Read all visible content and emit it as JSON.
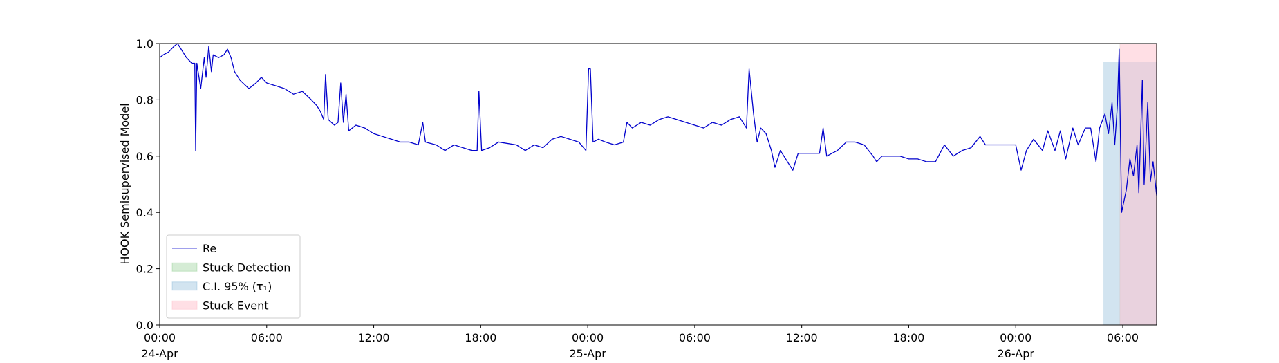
{
  "chart_data": {
    "type": "line",
    "ylabel": "HOOK Semisupervised Model",
    "xlim": [
      "1900-04-24 00:00",
      "1900-04-26 07:54"
    ],
    "xticks": [
      {
        "value": "1900-04-24 00:00",
        "label": "00:00\n24-Apr\n1900"
      },
      {
        "value": "1900-04-24 06:00",
        "label": "06:00"
      },
      {
        "value": "1900-04-24 12:00",
        "label": "12:00"
      },
      {
        "value": "1900-04-24 18:00",
        "label": "18:00"
      },
      {
        "value": "1900-04-25 00:00",
        "label": "00:00\n25-Apr"
      },
      {
        "value": "1900-04-25 06:00",
        "label": "06:00"
      },
      {
        "value": "1900-04-25 12:00",
        "label": "12:00"
      },
      {
        "value": "1900-04-25 18:00",
        "label": "18:00"
      },
      {
        "value": "1900-04-26 00:00",
        "label": "00:00\n26-Apr"
      },
      {
        "value": "1900-04-26 06:00",
        "label": "06:00"
      }
    ],
    "ylim": [
      0,
      1
    ],
    "yticks": [
      {
        "value": 0,
        "label": "0.0"
      },
      0.2,
      0.4,
      0.6,
      0.8,
      {
        "value": 1,
        "label": "1.0"
      }
    ],
    "legend": "lower left",
    "x": [
      "1900-04-24 00:00",
      "1900-04-24 00:12",
      "1900-04-24 00:30",
      "1900-04-24 00:48",
      "1900-04-24 01:00",
      "1900-04-24 01:12",
      "1900-04-24 01:30",
      "1900-04-24 01:48",
      "1900-04-24 01:58",
      "1900-04-24 02:01",
      "1900-04-24 02:05",
      "1900-04-24 02:18",
      "1900-04-24 02:30",
      "1900-04-24 02:36",
      "1900-04-24 02:45",
      "1900-04-24 02:54",
      "1900-04-24 03:00",
      "1900-04-24 03:18",
      "1900-04-24 03:36",
      "1900-04-24 03:48",
      "1900-04-24 04:00",
      "1900-04-24 04:12",
      "1900-04-24 04:30",
      "1900-04-24 05:00",
      "1900-04-24 05:24",
      "1900-04-24 05:42",
      "1900-04-24 06:00",
      "1900-04-24 06:30",
      "1900-04-24 07:00",
      "1900-04-24 07:30",
      "1900-04-24 08:00",
      "1900-04-24 08:30",
      "1900-04-24 08:48",
      "1900-04-24 09:00",
      "1900-04-24 09:12",
      "1900-04-24 09:18",
      "1900-04-24 09:27",
      "1900-04-24 09:48",
      "1900-04-24 10:00",
      "1900-04-24 10:09",
      "1900-04-24 10:18",
      "1900-04-24 10:27",
      "1900-04-24 10:36",
      "1900-04-24 11:00",
      "1900-04-24 11:30",
      "1900-04-24 12:00",
      "1900-04-24 12:30",
      "1900-04-24 13:00",
      "1900-04-24 13:30",
      "1900-04-24 14:00",
      "1900-04-24 14:30",
      "1900-04-24 14:45",
      "1900-04-24 14:54",
      "1900-04-24 15:30",
      "1900-04-24 16:00",
      "1900-04-24 16:30",
      "1900-04-24 17:00",
      "1900-04-24 17:30",
      "1900-04-24 17:48",
      "1900-04-24 17:54",
      "1900-04-24 18:03",
      "1900-04-24 18:30",
      "1900-04-24 19:00",
      "1900-04-24 20:00",
      "1900-04-24 20:30",
      "1900-04-24 21:00",
      "1900-04-24 21:30",
      "1900-04-24 22:00",
      "1900-04-24 22:30",
      "1900-04-24 23:00",
      "1900-04-24 23:30",
      "1900-04-24 23:54",
      "1900-04-25 00:03",
      "1900-04-25 00:09",
      "1900-04-25 00:18",
      "1900-04-25 00:36",
      "1900-04-25 01:00",
      "1900-04-25 01:30",
      "1900-04-25 02:00",
      "1900-04-25 02:12",
      "1900-04-25 02:30",
      "1900-04-25 03:00",
      "1900-04-25 03:30",
      "1900-04-25 04:00",
      "1900-04-25 04:30",
      "1900-04-25 05:00",
      "1900-04-25 05:30",
      "1900-04-25 06:00",
      "1900-04-25 06:30",
      "1900-04-25 07:00",
      "1900-04-25 07:30",
      "1900-04-25 08:00",
      "1900-04-25 08:30",
      "1900-04-25 08:54",
      "1900-04-25 09:03",
      "1900-04-25 09:18",
      "1900-04-25 09:30",
      "1900-04-25 09:42",
      "1900-04-25 10:00",
      "1900-04-25 10:18",
      "1900-04-25 10:30",
      "1900-04-25 10:48",
      "1900-04-25 11:12",
      "1900-04-25 11:30",
      "1900-04-25 11:48",
      "1900-04-25 12:30",
      "1900-04-25 13:00",
      "1900-04-25 13:12",
      "1900-04-25 13:24",
      "1900-04-25 14:00",
      "1900-04-25 14:30",
      "1900-04-25 15:00",
      "1900-04-25 15:30",
      "1900-04-25 16:00",
      "1900-04-25 16:12",
      "1900-04-25 16:30",
      "1900-04-25 17:00",
      "1900-04-25 17:30",
      "1900-04-25 18:00",
      "1900-04-25 18:30",
      "1900-04-25 19:00",
      "1900-04-25 19:30",
      "1900-04-25 20:00",
      "1900-04-25 20:30",
      "1900-04-25 21:00",
      "1900-04-25 21:30",
      "1900-04-25 22:00",
      "1900-04-25 22:18",
      "1900-04-25 23:00",
      "1900-04-25 23:30",
      "1900-04-26 00:00",
      "1900-04-26 00:18",
      "1900-04-26 00:36",
      "1900-04-26 01:00",
      "1900-04-26 01:30",
      "1900-04-26 01:48",
      "1900-04-26 02:12",
      "1900-04-26 02:30",
      "1900-04-26 02:48",
      "1900-04-26 03:12",
      "1900-04-26 03:30",
      "1900-04-26 03:54",
      "1900-04-26 04:12",
      "1900-04-26 04:30",
      "1900-04-26 04:42",
      "1900-04-26 05:00",
      "1900-04-26 05:12",
      "1900-04-26 05:24",
      "1900-04-26 05:33",
      "1900-04-26 05:42",
      "1900-04-26 05:48",
      "1900-04-26 05:56",
      "1900-04-26 06:12",
      "1900-04-26 06:24",
      "1900-04-26 06:36",
      "1900-04-26 06:48",
      "1900-04-26 06:54",
      "1900-04-26 07:06",
      "1900-04-26 07:12",
      "1900-04-26 07:24",
      "1900-04-26 07:33",
      "1900-04-26 07:42",
      "1900-04-26 07:54"
    ],
    "series": [
      {
        "name": "Re",
        "color": "#0000cc",
        "values": [
          0.95,
          0.96,
          0.97,
          0.99,
          1.0,
          0.98,
          0.95,
          0.93,
          0.93,
          0.62,
          0.93,
          0.84,
          0.95,
          0.88,
          0.99,
          0.9,
          0.96,
          0.95,
          0.96,
          0.98,
          0.95,
          0.9,
          0.87,
          0.84,
          0.86,
          0.88,
          0.86,
          0.85,
          0.84,
          0.82,
          0.83,
          0.8,
          0.78,
          0.76,
          0.73,
          0.89,
          0.73,
          0.71,
          0.72,
          0.86,
          0.72,
          0.82,
          0.69,
          0.71,
          0.7,
          0.68,
          0.67,
          0.66,
          0.65,
          0.65,
          0.64,
          0.72,
          0.65,
          0.64,
          0.62,
          0.64,
          0.63,
          0.62,
          0.62,
          0.83,
          0.62,
          0.63,
          0.65,
          0.64,
          0.62,
          0.64,
          0.63,
          0.66,
          0.67,
          0.66,
          0.65,
          0.62,
          0.91,
          0.91,
          0.65,
          0.66,
          0.65,
          0.64,
          0.65,
          0.72,
          0.7,
          0.72,
          0.71,
          0.73,
          0.74,
          0.73,
          0.72,
          0.71,
          0.7,
          0.72,
          0.71,
          0.73,
          0.74,
          0.7,
          0.91,
          0.75,
          0.65,
          0.7,
          0.68,
          0.62,
          0.56,
          0.62,
          0.58,
          0.55,
          0.61,
          0.61,
          0.61,
          0.7,
          0.6,
          0.62,
          0.65,
          0.65,
          0.64,
          0.6,
          0.58,
          0.6,
          0.6,
          0.6,
          0.59,
          0.59,
          0.58,
          0.58,
          0.64,
          0.6,
          0.62,
          0.63,
          0.67,
          0.64,
          0.64,
          0.64,
          0.64,
          0.55,
          0.62,
          0.66,
          0.62,
          0.69,
          0.62,
          0.69,
          0.59,
          0.7,
          0.64,
          0.7,
          0.7,
          0.58,
          0.7,
          0.75,
          0.68,
          0.79,
          0.64,
          0.78,
          0.98,
          0.4,
          0.48,
          0.59,
          0.53,
          0.64,
          0.47,
          0.87,
          0.5,
          0.79,
          0.51,
          0.58,
          0.46
        ]
      }
    ],
    "spans": [
      {
        "name": "Stuck Detection",
        "color": "#2ca02c",
        "alpha": 0.2,
        "x": [
          "1900-04-26 05:50",
          "1900-04-26 05:51"
        ],
        "y": [
          0,
          1
        ]
      },
      {
        "name": "C.I. 95% (τ₁)",
        "color": "#1f77b4",
        "alpha": 0.2,
        "x": [
          "1900-04-26 04:55",
          "1900-04-26 07:54"
        ],
        "y": [
          0,
          0.935
        ]
      },
      {
        "name": "Stuck Event",
        "color": "#ffc0cb",
        "alpha": 0.5,
        "x": [
          "1900-04-26 05:50",
          "1900-04-26 07:54"
        ],
        "y": [
          0,
          1
        ]
      }
    ]
  }
}
